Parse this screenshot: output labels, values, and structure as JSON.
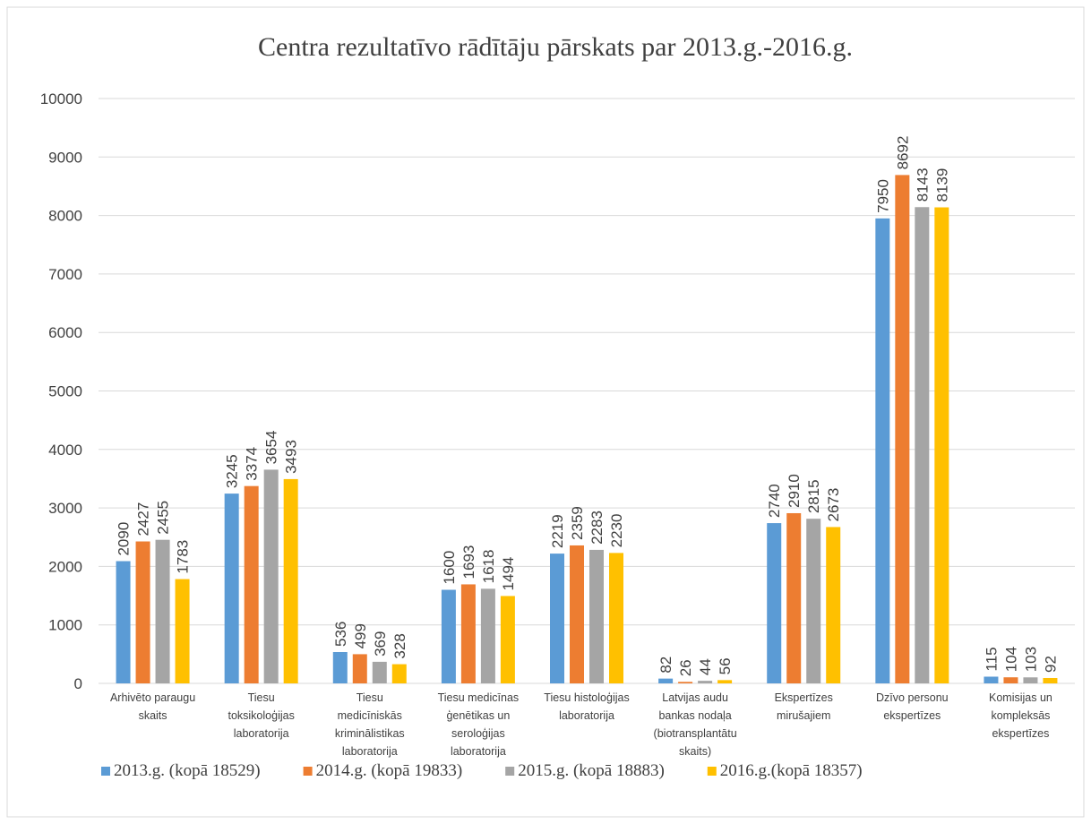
{
  "chart_data": {
    "type": "bar",
    "title": "Centra rezultatīvo rādītāju pārskats  par 2013.g.-2016.g.",
    "categories": [
      "Arhivēto paraugu\nskaits",
      "Tiesu\ntoksikoloģijas\nlaboratorija",
      "Tiesu\nmedicīniskās\nkriminālistikas\nlaboratorija",
      "Tiesu medicīnas\nģenētikas un\nseroloģijas\nlaboratorija",
      "Tiesu histoloģijas\nlaboratorija",
      "Latvijas audu\nbankas nodaļa\n(biotransplantātu\nskaits)",
      "Ekspertīzes\nmirušajiem",
      "Dzīvo personu\nekspertīzes",
      "Komisijas un\nkompleksās\nekspertīzes"
    ],
    "series": [
      {
        "name": "2013.g. (kopā 18529)",
        "color": "#5b9bd5",
        "values": [
          2090,
          3245,
          536,
          1600,
          2219,
          82,
          2740,
          7950,
          115
        ]
      },
      {
        "name": "2014.g. (kopā 19833)",
        "color": "#ed7d31",
        "values": [
          2427,
          3374,
          499,
          1693,
          2359,
          26,
          2910,
          8692,
          104
        ]
      },
      {
        "name": "2015.g. (kopā 18883)",
        "color": "#a5a5a5",
        "values": [
          2455,
          3654,
          369,
          1618,
          2283,
          44,
          2815,
          8143,
          103
        ]
      },
      {
        "name": "2016.g.(kopā 18357)",
        "color": "#ffc000",
        "values": [
          1783,
          3493,
          328,
          1494,
          2230,
          56,
          2673,
          8139,
          92
        ]
      }
    ],
    "ylim": [
      0,
      10000
    ],
    "yticks": [
      0,
      1000,
      2000,
      3000,
      4000,
      5000,
      6000,
      7000,
      8000,
      9000,
      10000
    ],
    "grid": true,
    "legend": "bottom"
  }
}
